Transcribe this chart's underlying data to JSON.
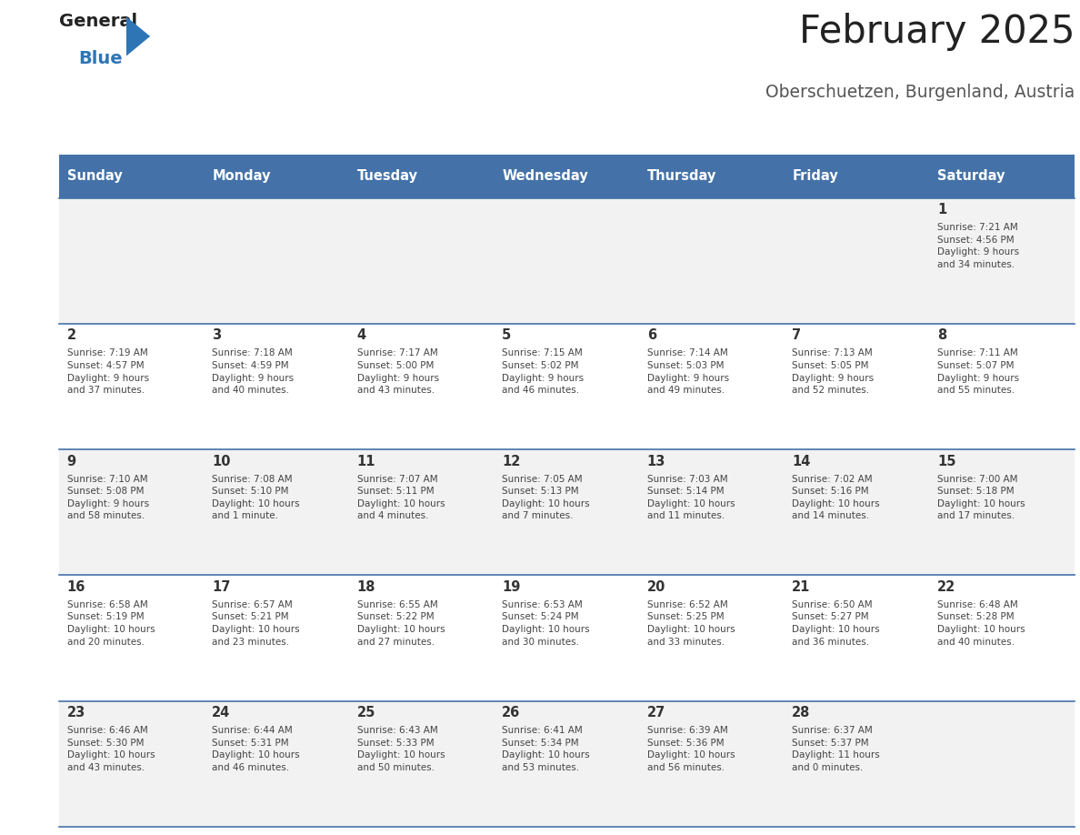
{
  "title": "February 2025",
  "subtitle": "Oberschuetzen, Burgenland, Austria",
  "days_of_week": [
    "Sunday",
    "Monday",
    "Tuesday",
    "Wednesday",
    "Thursday",
    "Friday",
    "Saturday"
  ],
  "header_bg": "#4472a8",
  "header_text": "#ffffff",
  "cell_bg_odd": "#f2f2f2",
  "cell_bg_even": "#ffffff",
  "day_num_color": "#333333",
  "info_text_color": "#444444",
  "divider_color": "#4472a8",
  "title_color": "#222222",
  "subtitle_color": "#555555",
  "logo_general_color": "#222222",
  "logo_blue_color": "#2e75b6",
  "weeks": [
    [
      {
        "day": null,
        "info": ""
      },
      {
        "day": null,
        "info": ""
      },
      {
        "day": null,
        "info": ""
      },
      {
        "day": null,
        "info": ""
      },
      {
        "day": null,
        "info": ""
      },
      {
        "day": null,
        "info": ""
      },
      {
        "day": 1,
        "info": "Sunrise: 7:21 AM\nSunset: 4:56 PM\nDaylight: 9 hours\nand 34 minutes."
      }
    ],
    [
      {
        "day": 2,
        "info": "Sunrise: 7:19 AM\nSunset: 4:57 PM\nDaylight: 9 hours\nand 37 minutes."
      },
      {
        "day": 3,
        "info": "Sunrise: 7:18 AM\nSunset: 4:59 PM\nDaylight: 9 hours\nand 40 minutes."
      },
      {
        "day": 4,
        "info": "Sunrise: 7:17 AM\nSunset: 5:00 PM\nDaylight: 9 hours\nand 43 minutes."
      },
      {
        "day": 5,
        "info": "Sunrise: 7:15 AM\nSunset: 5:02 PM\nDaylight: 9 hours\nand 46 minutes."
      },
      {
        "day": 6,
        "info": "Sunrise: 7:14 AM\nSunset: 5:03 PM\nDaylight: 9 hours\nand 49 minutes."
      },
      {
        "day": 7,
        "info": "Sunrise: 7:13 AM\nSunset: 5:05 PM\nDaylight: 9 hours\nand 52 minutes."
      },
      {
        "day": 8,
        "info": "Sunrise: 7:11 AM\nSunset: 5:07 PM\nDaylight: 9 hours\nand 55 minutes."
      }
    ],
    [
      {
        "day": 9,
        "info": "Sunrise: 7:10 AM\nSunset: 5:08 PM\nDaylight: 9 hours\nand 58 minutes."
      },
      {
        "day": 10,
        "info": "Sunrise: 7:08 AM\nSunset: 5:10 PM\nDaylight: 10 hours\nand 1 minute."
      },
      {
        "day": 11,
        "info": "Sunrise: 7:07 AM\nSunset: 5:11 PM\nDaylight: 10 hours\nand 4 minutes."
      },
      {
        "day": 12,
        "info": "Sunrise: 7:05 AM\nSunset: 5:13 PM\nDaylight: 10 hours\nand 7 minutes."
      },
      {
        "day": 13,
        "info": "Sunrise: 7:03 AM\nSunset: 5:14 PM\nDaylight: 10 hours\nand 11 minutes."
      },
      {
        "day": 14,
        "info": "Sunrise: 7:02 AM\nSunset: 5:16 PM\nDaylight: 10 hours\nand 14 minutes."
      },
      {
        "day": 15,
        "info": "Sunrise: 7:00 AM\nSunset: 5:18 PM\nDaylight: 10 hours\nand 17 minutes."
      }
    ],
    [
      {
        "day": 16,
        "info": "Sunrise: 6:58 AM\nSunset: 5:19 PM\nDaylight: 10 hours\nand 20 minutes."
      },
      {
        "day": 17,
        "info": "Sunrise: 6:57 AM\nSunset: 5:21 PM\nDaylight: 10 hours\nand 23 minutes."
      },
      {
        "day": 18,
        "info": "Sunrise: 6:55 AM\nSunset: 5:22 PM\nDaylight: 10 hours\nand 27 minutes."
      },
      {
        "day": 19,
        "info": "Sunrise: 6:53 AM\nSunset: 5:24 PM\nDaylight: 10 hours\nand 30 minutes."
      },
      {
        "day": 20,
        "info": "Sunrise: 6:52 AM\nSunset: 5:25 PM\nDaylight: 10 hours\nand 33 minutes."
      },
      {
        "day": 21,
        "info": "Sunrise: 6:50 AM\nSunset: 5:27 PM\nDaylight: 10 hours\nand 36 minutes."
      },
      {
        "day": 22,
        "info": "Sunrise: 6:48 AM\nSunset: 5:28 PM\nDaylight: 10 hours\nand 40 minutes."
      }
    ],
    [
      {
        "day": 23,
        "info": "Sunrise: 6:46 AM\nSunset: 5:30 PM\nDaylight: 10 hours\nand 43 minutes."
      },
      {
        "day": 24,
        "info": "Sunrise: 6:44 AM\nSunset: 5:31 PM\nDaylight: 10 hours\nand 46 minutes."
      },
      {
        "day": 25,
        "info": "Sunrise: 6:43 AM\nSunset: 5:33 PM\nDaylight: 10 hours\nand 50 minutes."
      },
      {
        "day": 26,
        "info": "Sunrise: 6:41 AM\nSunset: 5:34 PM\nDaylight: 10 hours\nand 53 minutes."
      },
      {
        "day": 27,
        "info": "Sunrise: 6:39 AM\nSunset: 5:36 PM\nDaylight: 10 hours\nand 56 minutes."
      },
      {
        "day": 28,
        "info": "Sunrise: 6:37 AM\nSunset: 5:37 PM\nDaylight: 11 hours\nand 0 minutes."
      },
      {
        "day": null,
        "info": ""
      }
    ]
  ]
}
